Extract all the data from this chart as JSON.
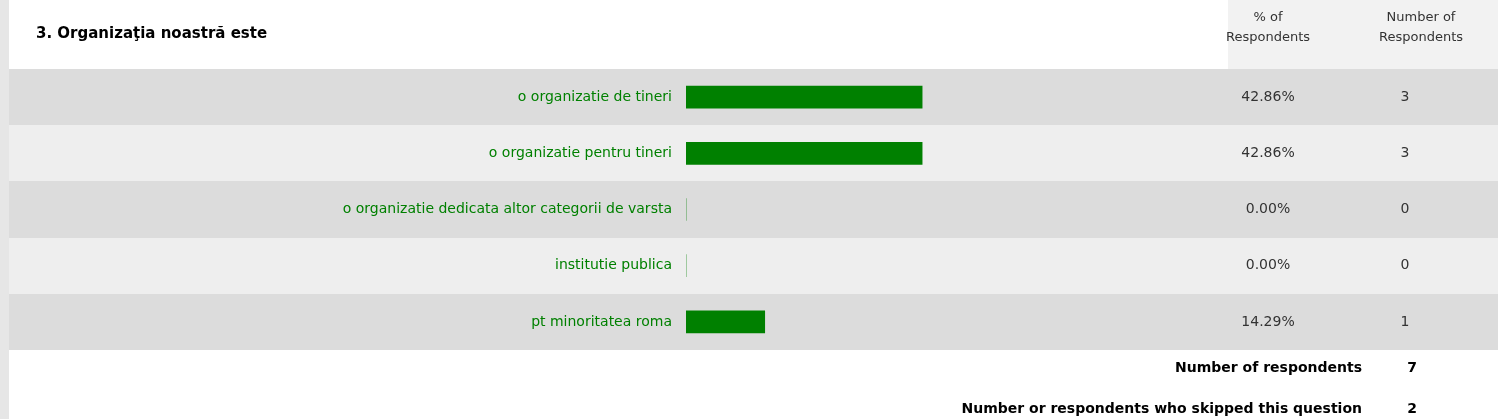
{
  "chart_data": {
    "type": "bar",
    "orientation": "horizontal",
    "title": "3. Organizaţia noastră este",
    "categories": [
      "o organizatie de tineri",
      "o organizatie pentru tineri",
      "o organizatie dedicata altor categorii de varsta",
      "institutie publica",
      "pt minoritatea roma"
    ],
    "values": [
      42.86,
      42.86,
      0.0,
      0.0,
      14.29
    ],
    "value_labels": [
      "42.86%",
      "42.86%",
      "0.00%",
      "0.00%",
      "14.29%"
    ],
    "color": "#008000",
    "grid": false,
    "legend": false,
    "annotations": [
      "% of Respondents",
      "Number of Respondents",
      "3",
      "3",
      "0",
      "0",
      "1",
      "Number of respondents",
      "7",
      "Number or respondents who skipped this question",
      "2"
    ]
  }
}
